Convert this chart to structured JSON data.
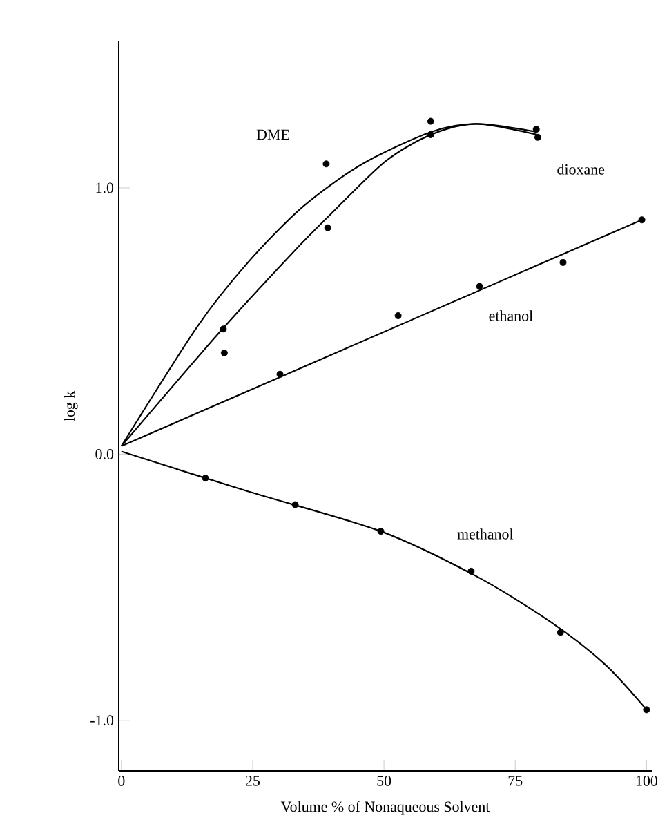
{
  "chart_data": {
    "type": "scatter",
    "xlabel": "Volume % of Nonaqueous Solvent",
    "ylabel": "log k",
    "xlim": [
      -0.5,
      101
    ],
    "ylim": [
      -1.19,
      1.55
    ],
    "xticks": [
      0,
      25,
      50,
      75,
      100
    ],
    "yticks": [
      {
        "value": -1,
        "label": "-1.0"
      },
      {
        "value": 0,
        "label": "0.0"
      },
      {
        "value": 1,
        "label": "1.0"
      }
    ],
    "grid": false,
    "legend": false,
    "series": [
      {
        "name": "DME",
        "color": "#000000",
        "marker": "circle",
        "x": [
          19.4,
          39.0,
          58.9,
          79.0
        ],
        "values": [
          0.47,
          1.09,
          1.25,
          1.22
        ]
      },
      {
        "type": "line",
        "color": "#000000",
        "marker": "none",
        "x": [
          0,
          14.5,
          24.1,
          34.6,
          45.9,
          59.0,
          67.7,
          79.1
        ],
        "values": [
          0.03,
          0.48,
          0.72,
          0.93,
          1.09,
          1.21,
          1.24,
          1.21
        ]
      },
      {
        "name": "dioxane",
        "color": "#000000",
        "marker": "circle",
        "x": [
          19.6,
          39.3,
          58.9,
          79.3
        ],
        "values": [
          0.38,
          0.85,
          1.2,
          1.19
        ]
      },
      {
        "type": "line",
        "color": "#000000",
        "marker": "none",
        "x": [
          0,
          18.8,
          32.8,
          39.8,
          50.3,
          59.0,
          67.7,
          79.1
        ],
        "values": [
          0.03,
          0.46,
          0.76,
          0.9,
          1.1,
          1.2,
          1.24,
          1.2
        ]
      },
      {
        "name": "ethanol",
        "color": "#000000",
        "marker": "circle",
        "x": [
          30.2,
          52.7,
          68.2,
          84.1,
          99.1
        ],
        "values": [
          0.3,
          0.52,
          0.63,
          0.72,
          0.88
        ]
      },
      {
        "type": "line",
        "color": "#000000",
        "marker": "none",
        "x": [
          0,
          99.1
        ],
        "values": [
          0.03,
          0.88
        ]
      },
      {
        "name": "methanol",
        "color": "#000000",
        "marker": "circle",
        "x": [
          16.0,
          33.1,
          49.4,
          66.6,
          83.6,
          100
        ],
        "values": [
          -0.09,
          -0.19,
          -0.29,
          -0.44,
          -0.67,
          -0.96
        ]
      },
      {
        "type": "line",
        "color": "#000000",
        "marker": "none",
        "x": [
          0,
          24.1,
          49.4,
          67.7,
          81.7,
          92.1,
          100
        ],
        "values": [
          0.01,
          -0.14,
          -0.29,
          -0.46,
          -0.63,
          -0.79,
          -0.96
        ]
      }
    ]
  }
}
